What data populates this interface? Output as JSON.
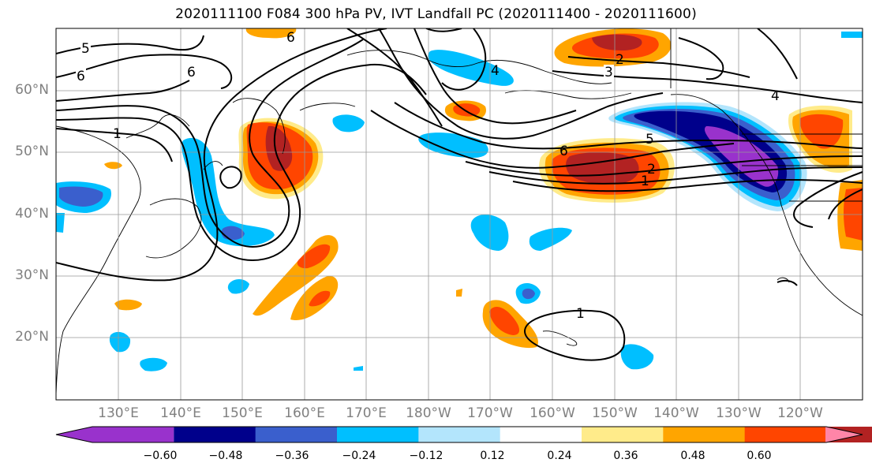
{
  "title": "2020111100 F084 300 hPa PV, IVT Landfall PC (2020111400 - 2020111600)",
  "lat_labels": [
    "60°N",
    "50°N",
    "40°N",
    "30°N",
    "20°N"
  ],
  "lon_labels": [
    "130°E",
    "140°E",
    "150°E",
    "160°E",
    "170°E",
    "180°W",
    "170°W",
    "160°W",
    "150°W",
    "140°W",
    "130°W",
    "120°W"
  ],
  "contour_labels": [
    "5",
    "6",
    "1",
    "6",
    "6",
    "2",
    "3",
    "4",
    "6",
    "5",
    "2",
    "1",
    "4",
    "1"
  ],
  "colorbar": {
    "tick_labels": [
      "−0.60",
      "−0.48",
      "−0.36",
      "−0.24",
      "−0.12",
      "0.12",
      "0.24",
      "0.36",
      "0.48",
      "0.60"
    ],
    "colors": [
      "#9932cc",
      "#00008b",
      "#3a5fcd",
      "#00bfff",
      "#b3e5fc",
      "#ffffff",
      "#ffeb8a",
      "#ffa500",
      "#ff4500",
      "#b22222",
      "#ff85a8"
    ]
  }
}
